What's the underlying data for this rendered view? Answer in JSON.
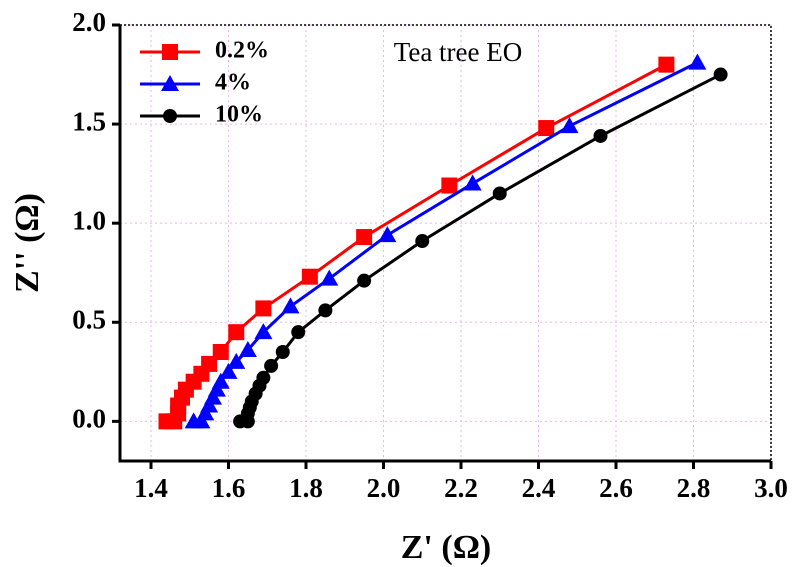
{
  "chart_data": {
    "type": "line",
    "xlabel": "Z' (Ω)",
    "ylabel": "Z'' (Ω)",
    "annotation": "Tea tree EO",
    "xlim": [
      1.32,
      3.0
    ],
    "ylim": [
      -0.2,
      2.0
    ],
    "xticks": [
      1.4,
      1.6,
      1.8,
      {
        "value": 2.0,
        "label": "2.0"
      },
      2.2,
      2.4,
      2.6,
      2.8,
      {
        "value": 3.0,
        "label": "3.0"
      }
    ],
    "yticks": [
      {
        "value": 0,
        "label": "0.0"
      },
      0.5,
      {
        "value": 1.0,
        "label": "1.0"
      },
      1.5,
      {
        "value": 2.0,
        "label": "2.0"
      }
    ],
    "grid": true,
    "legend": "upper left",
    "series": [
      {
        "name": "0.2%",
        "color": "#ff0000",
        "marker": "square",
        "x": [
          1.44,
          1.46,
          1.47,
          1.47,
          1.48,
          1.49,
          1.51,
          1.53,
          1.55,
          1.58,
          1.62,
          1.69,
          1.81,
          1.95,
          2.17,
          2.42,
          2.73
        ],
        "values": [
          0.0,
          0.0,
          0.04,
          0.08,
          0.12,
          0.16,
          0.2,
          0.24,
          0.29,
          0.35,
          0.45,
          0.57,
          0.73,
          0.93,
          1.19,
          1.48,
          1.8
        ]
      },
      {
        "name": "4%",
        "color": "#0000ff",
        "marker": "triangle",
        "x": [
          1.51,
          1.53,
          1.54,
          1.55,
          1.56,
          1.57,
          1.58,
          1.6,
          1.62,
          1.65,
          1.69,
          1.76,
          1.86,
          2.01,
          2.23,
          2.48,
          2.81
        ],
        "values": [
          0.0,
          0.0,
          0.04,
          0.08,
          0.12,
          0.16,
          0.2,
          0.25,
          0.3,
          0.36,
          0.45,
          0.58,
          0.72,
          0.94,
          1.2,
          1.49,
          1.81
        ]
      },
      {
        "name": "10%",
        "color": "#000000",
        "marker": "circle",
        "x": [
          1.63,
          1.65,
          1.65,
          1.655,
          1.66,
          1.67,
          1.68,
          1.69,
          1.71,
          1.74,
          1.78,
          1.85,
          1.95,
          2.1,
          2.3,
          2.56,
          2.87
        ],
        "values": [
          0.0,
          0.0,
          0.04,
          0.07,
          0.1,
          0.14,
          0.18,
          0.22,
          0.28,
          0.35,
          0.45,
          0.56,
          0.71,
          0.91,
          1.15,
          1.44,
          1.75
        ]
      }
    ]
  }
}
